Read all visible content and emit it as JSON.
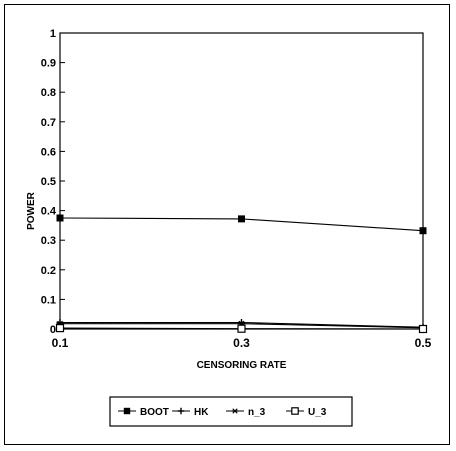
{
  "chart_data": {
    "type": "line",
    "title": "",
    "xlabel": "CENSORING RATE",
    "ylabel": "POWER",
    "x": [
      0.1,
      0.3,
      0.5
    ],
    "x_tick_labels": [
      "0.1",
      "0.3",
      "0.5"
    ],
    "ylim": [
      0,
      1
    ],
    "y_ticks": [
      0,
      0.1,
      0.2,
      0.3,
      0.4,
      0.5,
      0.6,
      0.7,
      0.8,
      0.9,
      1
    ],
    "y_tick_labels": [
      "0",
      "0.1",
      "0.2",
      "0.3",
      "0.4",
      "0.5",
      "0.6",
      "0.7",
      "0.8",
      "0.9",
      "1"
    ],
    "grid": false,
    "legend_position": "bottom",
    "series": [
      {
        "name": "BOOT",
        "values": [
          0.375,
          0.372,
          0.332
        ],
        "marker": "filled-square"
      },
      {
        "name": "HK",
        "values": [
          0.022,
          0.022,
          0.006
        ],
        "marker": "plus"
      },
      {
        "name": "n_3",
        "values": [
          0.018,
          0.018,
          0.004
        ],
        "marker": "asterisk"
      },
      {
        "name": "U_3",
        "values": [
          0.003,
          0.001,
          0.0
        ],
        "marker": "open-square"
      }
    ],
    "colors": {
      "line": "#000000",
      "background": "#ffffff"
    }
  }
}
